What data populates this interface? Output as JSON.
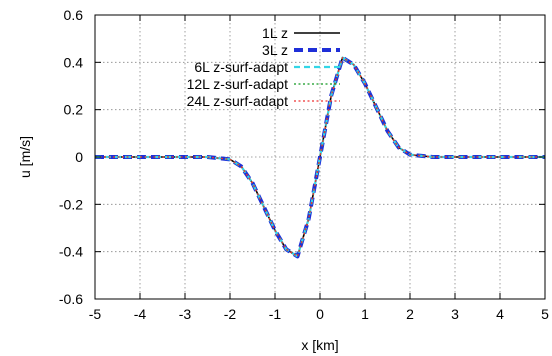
{
  "chart_data": {
    "type": "line",
    "title": "",
    "xlabel": "x [km]",
    "ylabel": "u [m/s]",
    "xlim": [
      -5,
      5
    ],
    "ylim": [
      -0.6,
      0.6
    ],
    "x_ticks": [
      -5,
      -4,
      -3,
      -2,
      -1,
      0,
      1,
      2,
      3,
      4,
      5
    ],
    "y_ticks": [
      -0.6,
      -0.4,
      -0.2,
      0,
      0.2,
      0.4,
      0.6
    ],
    "x_tick_labels": [
      "-5",
      "-4",
      "-3",
      "-2",
      "-1",
      "0",
      "1",
      "2",
      "3",
      "4",
      "5"
    ],
    "y_tick_labels": [
      "-0.6",
      "-0.4",
      "-0.2",
      "0",
      "0.2",
      "0.4",
      "0.6"
    ],
    "grid": true,
    "legend_position": "top-right",
    "x": [
      -5,
      -4,
      -3,
      -2.5,
      -2,
      -1.75,
      -1.5,
      -1.25,
      -1,
      -0.75,
      -0.5,
      -0.25,
      0,
      0.25,
      0.5,
      0.75,
      1,
      1.25,
      1.5,
      1.75,
      2,
      2.5,
      3,
      4,
      5
    ],
    "series": [
      {
        "name": "1L z",
        "color": "#000000",
        "style": "solid",
        "values": [
          0,
          0,
          0,
          0,
          -0.01,
          -0.04,
          -0.11,
          -0.21,
          -0.31,
          -0.39,
          -0.42,
          -0.26,
          0,
          0.26,
          0.42,
          0.39,
          0.31,
          0.21,
          0.11,
          0.04,
          0.01,
          0,
          0,
          0,
          0
        ]
      },
      {
        "name": "3L z",
        "color": "#1f2fd8",
        "style": "dashed",
        "values": [
          0,
          0,
          0,
          0,
          -0.01,
          -0.04,
          -0.11,
          -0.21,
          -0.31,
          -0.39,
          -0.42,
          -0.26,
          0,
          0.26,
          0.42,
          0.39,
          0.31,
          0.21,
          0.11,
          0.04,
          0.01,
          0,
          0,
          0,
          0
        ]
      },
      {
        "name": "6L  z-surf-adapt",
        "color": "#33d6e6",
        "style": "dashed",
        "values": [
          0,
          0,
          0,
          0,
          -0.01,
          -0.04,
          -0.11,
          -0.21,
          -0.31,
          -0.39,
          -0.42,
          -0.26,
          0,
          0.26,
          0.42,
          0.39,
          0.31,
          0.21,
          0.11,
          0.04,
          0.01,
          0,
          0,
          0,
          0
        ]
      },
      {
        "name": "12L z-surf-adapt",
        "color": "#119922",
        "style": "dotted",
        "values": [
          0,
          0,
          0,
          0,
          -0.01,
          -0.04,
          -0.11,
          -0.21,
          -0.31,
          -0.39,
          -0.42,
          -0.26,
          0,
          0.26,
          0.42,
          0.39,
          0.31,
          0.21,
          0.11,
          0.04,
          0.01,
          0,
          0,
          0,
          0
        ]
      },
      {
        "name": "24L z-surf-adapt",
        "color": "#ee3333",
        "style": "dotted",
        "values": [
          0,
          0,
          0,
          0,
          -0.01,
          -0.04,
          -0.11,
          -0.21,
          -0.31,
          -0.39,
          -0.42,
          -0.26,
          0,
          0.26,
          0.42,
          0.39,
          0.31,
          0.21,
          0.11,
          0.04,
          0.01,
          0,
          0,
          0,
          0
        ]
      }
    ]
  }
}
